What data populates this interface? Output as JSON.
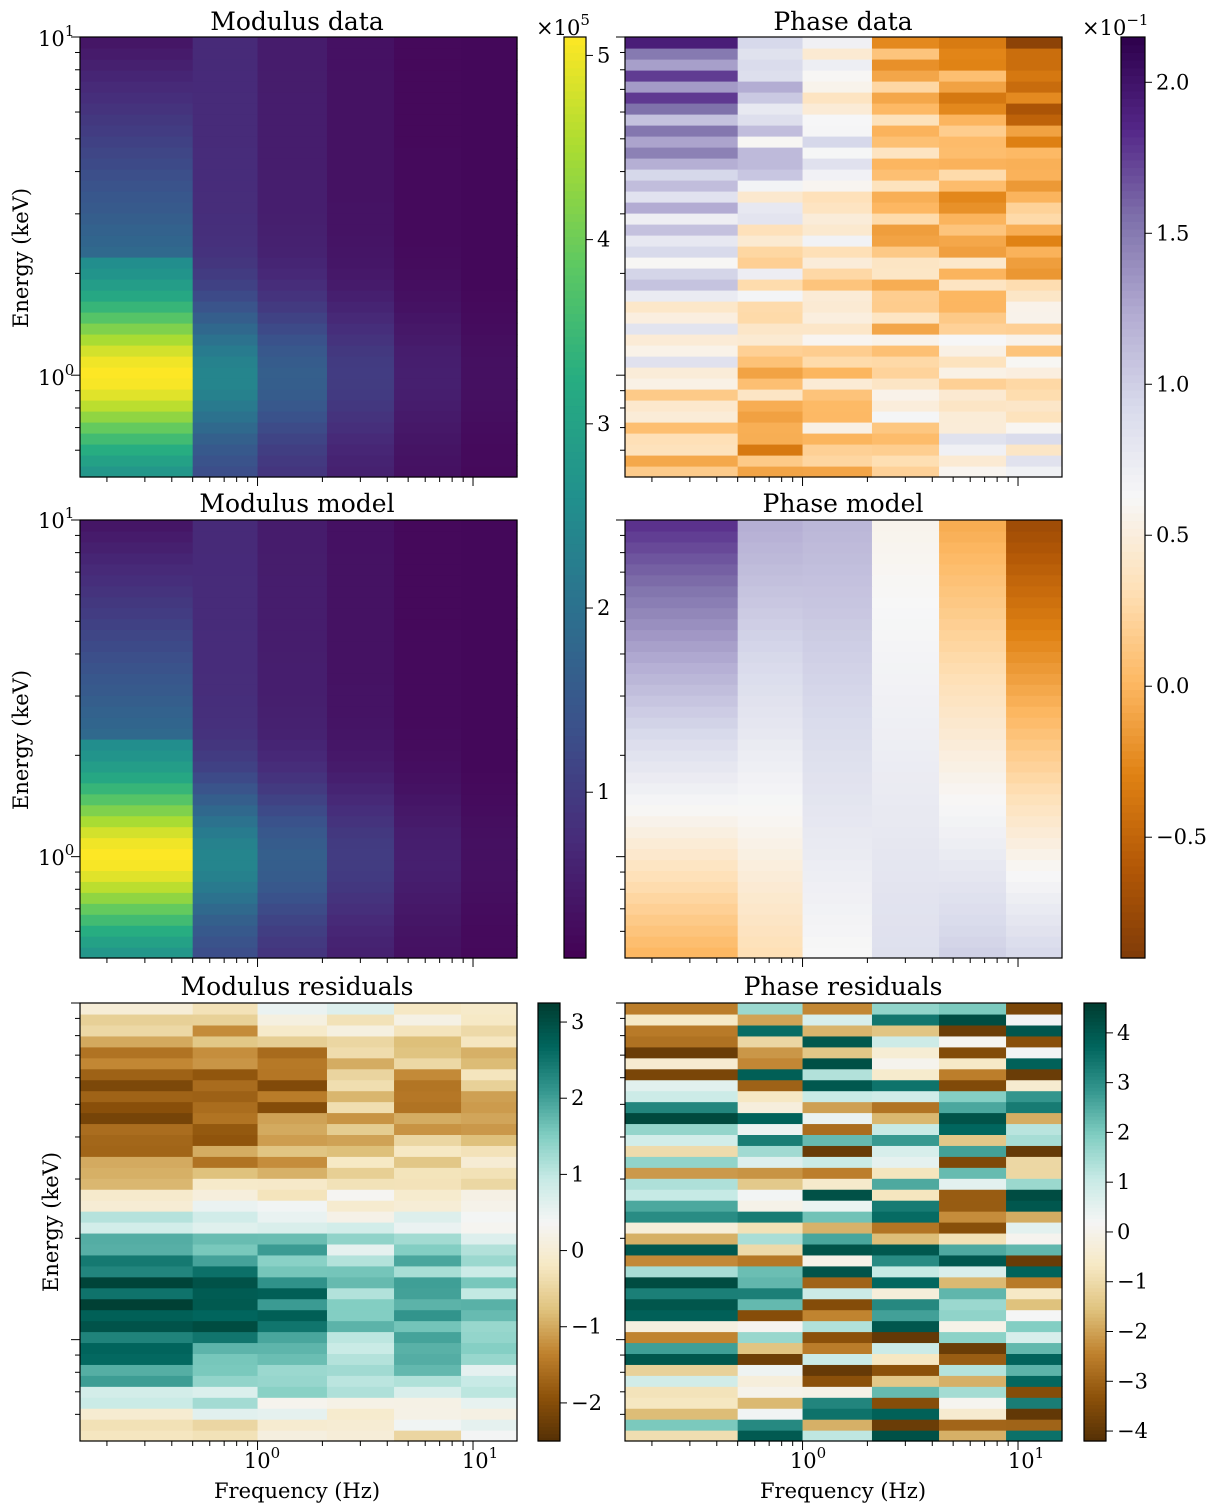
{
  "chart_data": [
    {
      "type": "heatmap",
      "title": "Modulus data",
      "ylabel": "Energy (keV)",
      "xlabel": "",
      "x_scale": "log",
      "y_scale": "log",
      "xlim": [
        0.15,
        16
      ],
      "ylim": [
        0.5,
        10
      ],
      "x_bin_edges": [
        0.15,
        0.5,
        1.0,
        2.1,
        4.3,
        8.8,
        16
      ],
      "y_ticks": [
        {
          "value": 1,
          "label": "10",
          "exp": "0"
        },
        {
          "value": 10,
          "label": "10",
          "exp": "1"
        }
      ],
      "colormap": "viridis",
      "colorbar": {
        "range": [
          0.1,
          5.1
        ],
        "ticks": [
          "1",
          "2",
          "3",
          "4",
          "5"
        ],
        "tick_values": [
          1,
          2,
          3,
          4,
          5
        ],
        "multiplier": "×10",
        "multiplier_exp": "5"
      },
      "values_shape": [
        40,
        6
      ],
      "values_note_label": "modulus"
    },
    {
      "type": "heatmap",
      "title": "Phase data",
      "ylabel": "",
      "xlabel": "",
      "x_scale": "log",
      "y_scale": "log",
      "xlim": [
        0.15,
        16
      ],
      "ylim": [
        0.5,
        10
      ],
      "x_bin_edges": [
        0.15,
        0.5,
        1.0,
        2.1,
        4.3,
        8.8,
        16
      ],
      "colormap": "PuOr",
      "colorbar": {
        "range": [
          -0.9,
          2.15
        ],
        "ticks": [
          "−0.5",
          "0.0",
          "0.5",
          "1.0",
          "1.5",
          "2.0"
        ],
        "tick_values": [
          -0.5,
          0.0,
          0.5,
          1.0,
          1.5,
          2.0
        ],
        "multiplier": "×10",
        "multiplier_exp": "−1"
      }
    },
    {
      "type": "heatmap",
      "title": "Modulus model",
      "ylabel": "Energy (keV)",
      "xlabel": "",
      "x_scale": "log",
      "y_scale": "log",
      "xlim": [
        0.15,
        16
      ],
      "ylim": [
        0.5,
        10
      ],
      "x_bin_edges": [
        0.15,
        0.5,
        1.0,
        2.1,
        4.3,
        8.8,
        16
      ],
      "y_ticks": [
        {
          "value": 1,
          "label": "10",
          "exp": "0"
        },
        {
          "value": 10,
          "label": "10",
          "exp": "1"
        }
      ],
      "colormap": "viridis"
    },
    {
      "type": "heatmap",
      "title": "Phase model",
      "ylabel": "",
      "xlabel": "",
      "x_scale": "log",
      "y_scale": "log",
      "xlim": [
        0.15,
        16
      ],
      "ylim": [
        0.5,
        10
      ],
      "x_bin_edges": [
        0.15,
        0.5,
        1.0,
        2.1,
        4.3,
        8.8,
        16
      ],
      "colormap": "PuOr"
    },
    {
      "type": "heatmap",
      "title": "Modulus residuals",
      "ylabel": "Energy (keV)",
      "xlabel": "Frequency (Hz)",
      "x_scale": "log",
      "y_scale": "log",
      "xlim": [
        0.15,
        16
      ],
      "ylim": [
        0.5,
        10
      ],
      "x_bin_edges": [
        0.15,
        0.5,
        1.0,
        2.1,
        4.3,
        8.8,
        16
      ],
      "x_ticks": [
        {
          "value": 1,
          "label": "10",
          "exp": "0"
        },
        {
          "value": 10,
          "label": "10",
          "exp": "1"
        }
      ],
      "colormap": "BrBG",
      "colorbar": {
        "range": [
          -2.5,
          3.25
        ],
        "ticks": [
          "−2",
          "−1",
          "0",
          "1",
          "2",
          "3"
        ],
        "tick_values": [
          -2,
          -1,
          0,
          1,
          2,
          3
        ]
      }
    },
    {
      "type": "heatmap",
      "title": "Phase residuals",
      "ylabel": "",
      "xlabel": "Frequency (Hz)",
      "x_scale": "log",
      "y_scale": "log",
      "xlim": [
        0.15,
        16
      ],
      "ylim": [
        0.5,
        10
      ],
      "x_bin_edges": [
        0.15,
        0.5,
        1.0,
        2.1,
        4.3,
        8.8,
        16
      ],
      "x_ticks": [
        {
          "value": 1,
          "label": "10",
          "exp": "0"
        },
        {
          "value": 10,
          "label": "10",
          "exp": "1"
        }
      ],
      "colormap": "BrBG",
      "colorbar": {
        "range": [
          -4.2,
          4.6
        ],
        "ticks": [
          "−4",
          "−3",
          "−2",
          "−1",
          "0",
          "1",
          "2",
          "3",
          "4"
        ],
        "tick_values": [
          -4,
          -3,
          -2,
          -1,
          0,
          1,
          2,
          3,
          4
        ]
      }
    }
  ]
}
